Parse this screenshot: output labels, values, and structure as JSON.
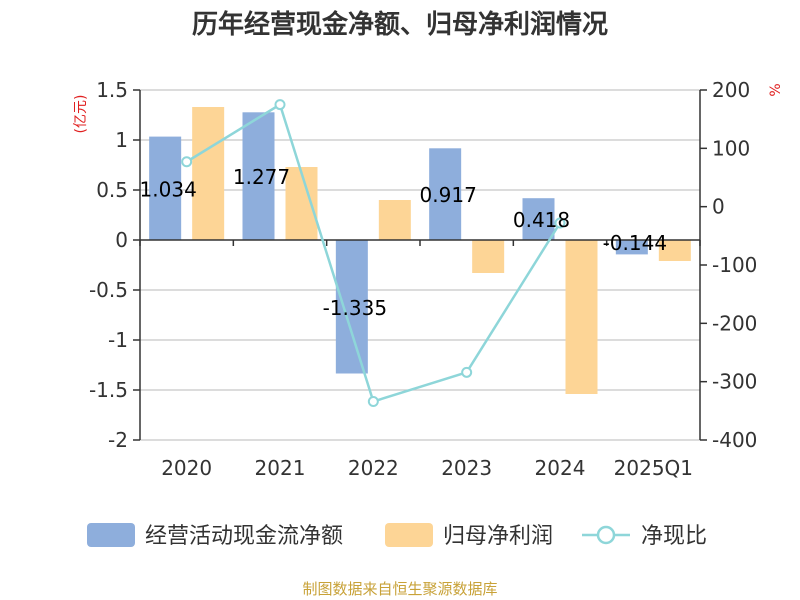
{
  "colors": {
    "operating_cash_flow": "#8eaedc",
    "net_profit": "#fdd596",
    "ratio_line": "#8ed6d9",
    "unit_text": "#e02020",
    "source_text": "#c8a238",
    "grid": "#c8c8c8",
    "axis": "#333333"
  },
  "chart_data": {
    "type": "bar",
    "title": "历年经营现金净额、归母净利润情况",
    "categories": [
      "2020",
      "2021",
      "2022",
      "2023",
      "2024",
      "2025Q1"
    ],
    "series": [
      {
        "name": "经营活动现金流净额",
        "type": "bar",
        "axis": "left",
        "values": [
          1.034,
          1.277,
          -1.335,
          0.917,
          0.418,
          -0.144
        ]
      },
      {
        "name": "归母净利润",
        "type": "bar",
        "axis": "left",
        "values": [
          1.33,
          0.73,
          0.4,
          -0.33,
          -1.54,
          -0.21
        ]
      },
      {
        "name": "净现比",
        "type": "line",
        "axis": "right",
        "values": [
          77,
          175,
          -334,
          -284,
          -28,
          null
        ]
      }
    ],
    "data_labels": [
      "1.034",
      "1.277",
      "-1.335",
      "0.917",
      "0.418",
      "-0.144"
    ],
    "left_axis": {
      "label": "(亿元)",
      "min": -2,
      "max": 1.5,
      "ticks": [
        1.5,
        1,
        0.5,
        0,
        -0.5,
        -1,
        -1.5,
        -2
      ],
      "tick_labels": [
        "1.5",
        "1",
        "0.5",
        "0",
        "-0.5",
        "-1",
        "-1.5",
        "-2"
      ]
    },
    "right_axis": {
      "label": "%",
      "min": -400,
      "max": 200,
      "ticks": [
        200,
        100,
        0,
        -100,
        -200,
        -300,
        -400
      ],
      "tick_labels": [
        "200",
        "100",
        "0",
        "-100",
        "-200",
        "-300",
        "-400"
      ]
    },
    "legend": [
      "经营活动现金流净额",
      "归母净利润",
      "净现比"
    ],
    "legend_position": "bottom",
    "grid": true
  },
  "source": "制图数据来自恒生聚源数据库"
}
